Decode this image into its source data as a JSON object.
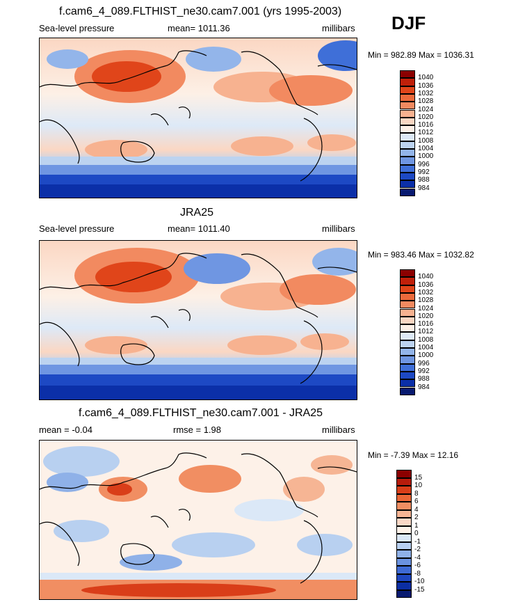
{
  "season": "DJF",
  "panels": [
    {
      "title": "f.cam6_4_089.FLTHIST_ne30.cam7.001 (yrs 1995-2003)",
      "left_label": "Sea-level pressure",
      "center_label": "mean= 1011.36",
      "units": "millibars",
      "minmax": "Min = 982.89 Max = 1036.31",
      "levels": [
        "1040",
        "1036",
        "1032",
        "1028",
        "1024",
        "1020",
        "1016",
        "1012",
        "1008",
        "1004",
        "1000",
        "996",
        "992",
        "988",
        "984"
      ]
    },
    {
      "title": "JRA25",
      "left_label": "Sea-level pressure",
      "center_label": "mean= 1011.40",
      "units": "millibars",
      "minmax": "Min = 983.46 Max = 1032.82",
      "levels": [
        "1040",
        "1036",
        "1032",
        "1028",
        "1024",
        "1020",
        "1016",
        "1012",
        "1008",
        "1004",
        "1000",
        "996",
        "992",
        "988",
        "984"
      ]
    },
    {
      "title": "f.cam6_4_089.FLTHIST_ne30.cam7.001 - JRA25",
      "left_label": "mean =  -0.04",
      "center_label": "rmse =   1.98",
      "units": "millibars",
      "minmax": "Min =  -7.39 Max =  12.16",
      "levels": [
        "15",
        "10",
        "8",
        "6",
        "4",
        "2",
        "1",
        "0",
        "-1",
        "-2",
        "-4",
        "-6",
        "-8",
        "-10",
        "-15"
      ]
    }
  ],
  "colors": {
    "scale_top": [
      "#8b0000",
      "#c0200a",
      "#e0451a",
      "#ec6a3b",
      "#f28a60",
      "#f7b290",
      "#fbd7c3",
      "#fdf0e6",
      "#dde9f7",
      "#bcd3f0",
      "#93b5ea",
      "#6f96e2",
      "#3f6fd8",
      "#1d49c4",
      "#0b2fa8",
      "#081a70"
    ],
    "scale_diff": [
      "#8b0000",
      "#b71c0c",
      "#d93e19",
      "#ea6636",
      "#f18e62",
      "#f6b594",
      "#fbd9c7",
      "#fdf1e8",
      "#dbe8f7",
      "#b8d0f0",
      "#8fb1e8",
      "#6a92df",
      "#3e6ad4",
      "#1e46bf",
      "#0b2ea3",
      "#081a70"
    ]
  }
}
